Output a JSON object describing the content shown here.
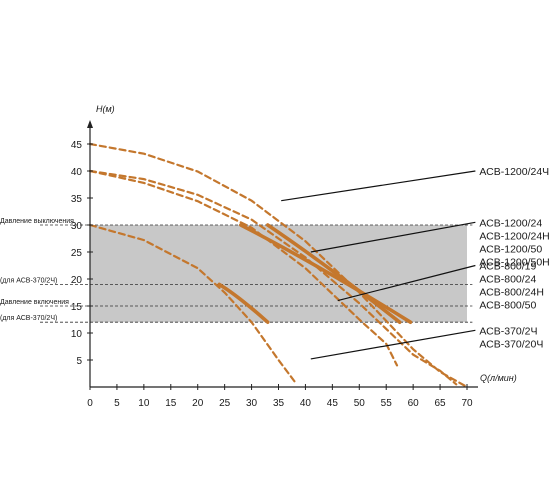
{
  "chart_data": {
    "type": "line",
    "xlabel": "Q(л/мин)",
    "ylabel": "H(м)",
    "xlim": [
      0,
      70
    ],
    "ylim": [
      0,
      45
    ],
    "x_ticks": [
      "0",
      "5",
      "10",
      "15",
      "20",
      "25",
      "30",
      "35",
      "40",
      "45",
      "50",
      "55",
      "60",
      "65",
      "70"
    ],
    "y_ticks": [
      "5",
      "10",
      "15",
      "20",
      "25",
      "30",
      "35",
      "40",
      "45"
    ],
    "grid": false,
    "pressure_band": {
      "from": 12,
      "to": 30,
      "color": "#c8c8c8"
    },
    "reference_lines": [
      {
        "y": 30,
        "label": "Давление выключения"
      },
      {
        "y": 19,
        "label": "(для АСВ-370/2Ч)"
      },
      {
        "y": 15,
        "label": "Давление включения"
      },
      {
        "y": 12,
        "label": "(для АСВ-370/2Ч)"
      }
    ],
    "series": [
      {
        "values": [
          [
            0,
            45
          ],
          [
            10,
            43.2
          ],
          [
            20,
            39.9
          ],
          [
            30,
            34.5
          ],
          [
            40,
            27
          ],
          [
            50,
            17.5
          ],
          [
            60,
            7
          ],
          [
            65,
            2.8
          ],
          [
            70,
            0
          ]
        ]
      },
      {
        "values": [
          [
            0,
            40
          ],
          [
            10,
            38.5
          ],
          [
            20,
            35.6
          ],
          [
            30,
            31
          ],
          [
            40,
            24
          ],
          [
            50,
            15.5
          ],
          [
            60,
            6
          ],
          [
            65,
            3
          ],
          [
            68,
            0.5
          ]
        ]
      },
      {
        "values": [
          [
            0,
            40
          ],
          [
            10,
            37.8
          ],
          [
            20,
            34.4
          ],
          [
            30,
            29.5
          ],
          [
            40,
            22
          ],
          [
            50,
            12.5
          ],
          [
            55,
            8
          ],
          [
            57,
            4
          ]
        ]
      },
      {
        "values": [
          [
            0,
            30
          ],
          [
            10,
            27.2
          ],
          [
            20,
            22
          ],
          [
            25,
            17.5
          ],
          [
            30,
            12
          ],
          [
            35,
            5
          ],
          [
            38,
            1
          ]
        ]
      }
    ],
    "solid_segments": [
      {
        "from": [
          28,
          30
        ],
        "to": [
          59.5,
          12
        ]
      },
      {
        "from": [
          33,
          30
        ],
        "to": [
          57.5,
          12
        ]
      },
      {
        "from": [
          24,
          19
        ],
        "to": [
          33,
          12
        ]
      }
    ],
    "callouts": [
      {
        "lines": [
          "АСВ-1200/24Ч"
        ],
        "anchor": [
          35.5,
          34.5
        ],
        "label_pos": [
          72.3,
          40
        ]
      },
      {
        "lines": [
          "АСВ-1200/24",
          "АСВ-1200/24Н",
          "АСВ-1200/50",
          "АСВ-1200/50Н"
        ],
        "anchor": [
          41,
          25
        ],
        "label_pos": [
          72.3,
          30.5
        ]
      },
      {
        "lines": [
          "АСВ-800/19",
          "АСВ-800/24",
          "АСВ-800/24Н",
          "АСВ-800/50"
        ],
        "anchor": [
          46,
          16
        ],
        "label_pos": [
          72.3,
          22.5
        ]
      },
      {
        "lines": [
          "АСВ-370/2Ч",
          "АСВ-370/20Ч"
        ],
        "anchor": [
          41,
          5.2
        ],
        "label_pos": [
          72.3,
          10.5
        ]
      }
    ],
    "colors": {
      "curve": "#c4772d",
      "axis": "#222222",
      "dash": "#333333"
    }
  }
}
